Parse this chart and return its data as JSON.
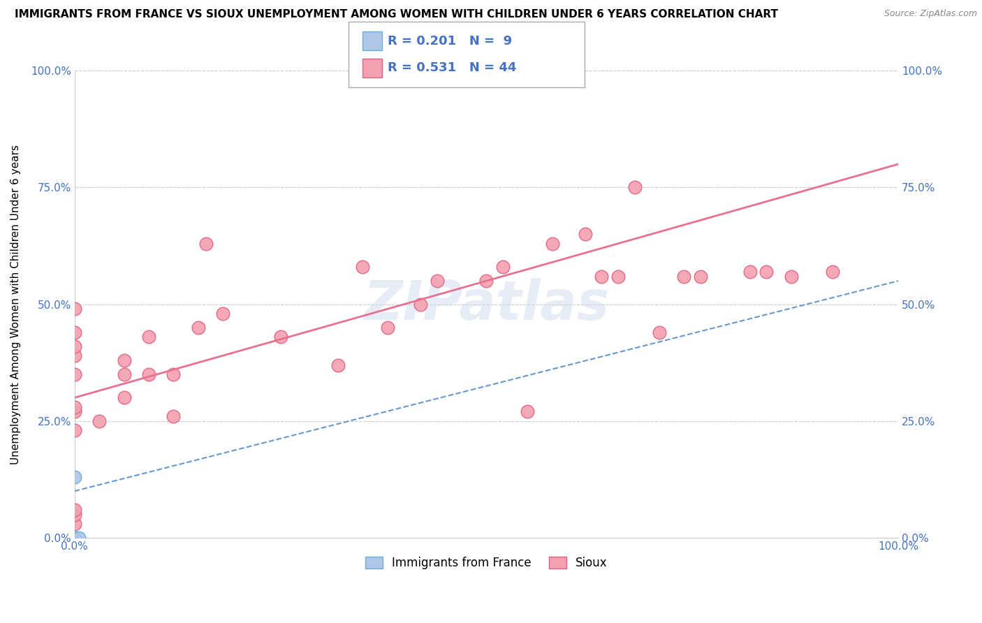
{
  "title": "IMMIGRANTS FROM FRANCE VS SIOUX UNEMPLOYMENT AMONG WOMEN WITH CHILDREN UNDER 6 YEARS CORRELATION CHART",
  "source": "Source: ZipAtlas.com",
  "ylabel": "Unemployment Among Women with Children Under 6 years",
  "xlim": [
    0.0,
    1.0
  ],
  "ylim": [
    0.0,
    1.0
  ],
  "xtick_labels": [
    "0.0%",
    "100.0%"
  ],
  "ytick_labels": [
    "0.0%",
    "25.0%",
    "50.0%",
    "75.0%",
    "100.0%"
  ],
  "ytick_positions": [
    0.0,
    0.25,
    0.5,
    0.75,
    1.0
  ],
  "grid_color": "#cccccc",
  "background_color": "#ffffff",
  "france_color": "#aec6e8",
  "france_edge": "#6baed6",
  "sioux_color": "#f4a0b0",
  "sioux_edge": "#e06080",
  "france_R": 0.201,
  "france_N": 9,
  "sioux_R": 0.531,
  "sioux_N": 44,
  "france_line_color": "#6699cc",
  "sioux_line_color": "#e87090",
  "france_x": [
    0.0,
    0.0,
    0.0,
    0.0,
    0.0,
    0.0,
    0.0,
    0.0,
    0.005
  ],
  "france_y": [
    0.0,
    0.0,
    0.0,
    0.0,
    0.0,
    0.0,
    0.0,
    0.13,
    0.0
  ],
  "sioux_x": [
    0.0,
    0.0,
    0.0,
    0.0,
    0.0,
    0.0,
    0.0,
    0.0,
    0.0,
    0.0,
    0.0,
    0.0,
    0.03,
    0.06,
    0.06,
    0.06,
    0.09,
    0.09,
    0.12,
    0.12,
    0.15,
    0.16,
    0.18,
    0.25,
    0.32,
    0.35,
    0.38,
    0.42,
    0.44,
    0.5,
    0.52,
    0.55,
    0.58,
    0.62,
    0.64,
    0.66,
    0.68,
    0.71,
    0.74,
    0.76,
    0.82,
    0.84,
    0.87,
    0.92
  ],
  "sioux_y": [
    0.0,
    0.03,
    0.05,
    0.06,
    0.23,
    0.27,
    0.28,
    0.35,
    0.39,
    0.41,
    0.44,
    0.49,
    0.25,
    0.3,
    0.35,
    0.38,
    0.35,
    0.43,
    0.26,
    0.35,
    0.45,
    0.63,
    0.48,
    0.43,
    0.37,
    0.58,
    0.45,
    0.5,
    0.55,
    0.55,
    0.58,
    0.27,
    0.63,
    0.65,
    0.56,
    0.56,
    0.75,
    0.44,
    0.56,
    0.56,
    0.57,
    0.57,
    0.56,
    0.57
  ],
  "sioux_line_x0": 0.0,
  "sioux_line_y0": 0.3,
  "sioux_line_x1": 1.0,
  "sioux_line_y1": 0.8,
  "france_line_x0": 0.0,
  "france_line_y0": 0.1,
  "france_line_x1": 1.0,
  "france_line_y1": 0.55,
  "legend_france_label": "Immigrants from France",
  "legend_sioux_label": "Sioux",
  "text_color_blue": "#4472c4",
  "text_color_black": "#000000"
}
